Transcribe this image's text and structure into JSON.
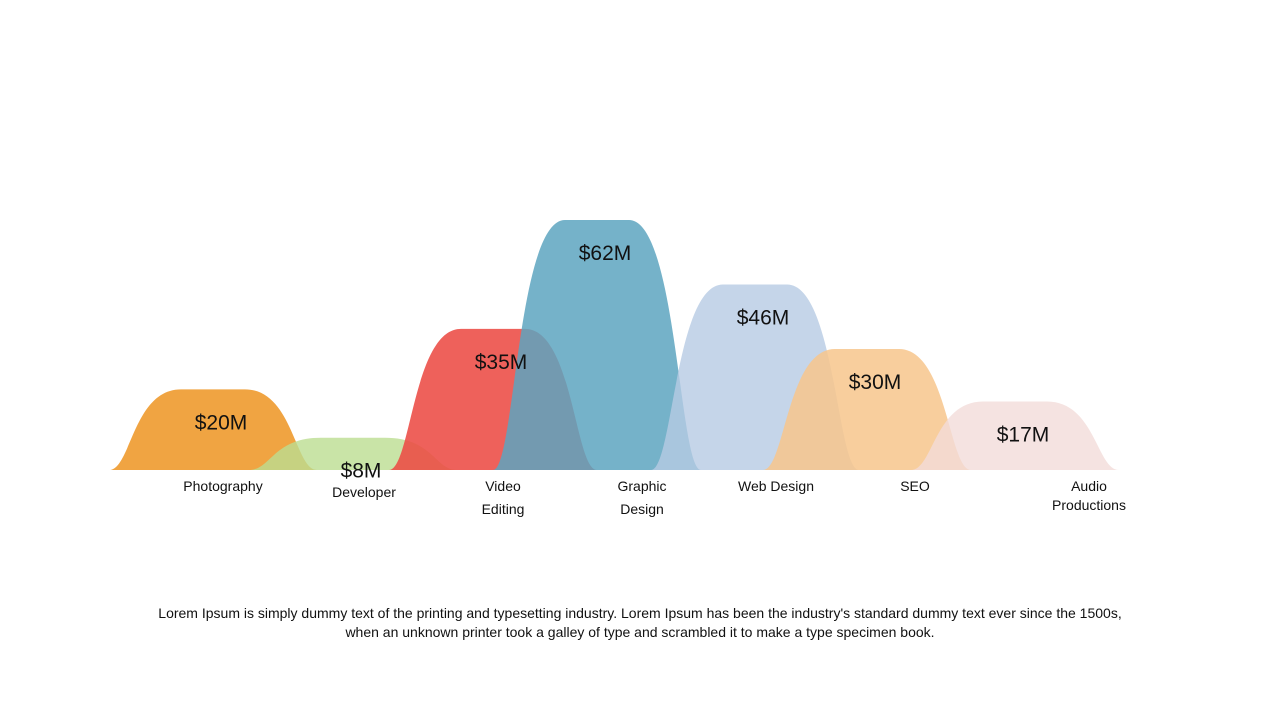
{
  "chart_data": {
    "type": "area",
    "title": "",
    "xlabel": "",
    "ylabel": "",
    "ylim": [
      0,
      62
    ],
    "categories": [
      [
        "Photography"
      ],
      [
        "Developer"
      ],
      [
        "Video",
        "Editing"
      ],
      [
        "Graphic",
        "Design"
      ],
      [
        "Web Design"
      ],
      [
        "SEO"
      ],
      [
        "Audio",
        "Productions"
      ]
    ],
    "values": [
      20,
      8,
      35,
      62,
      46,
      30,
      17
    ],
    "value_labels": [
      "$20M",
      "$8M",
      "$35M",
      "$62M",
      "$46M",
      "$30M",
      "$17M"
    ],
    "colors": [
      "#EE9A2E",
      "#BBDD91",
      "#EC4B44",
      "#5DA4BF",
      "#B6CBE4",
      "#F7C58C",
      "#F2DCDA"
    ],
    "opacity": [
      0.9,
      0.8,
      0.88,
      0.85,
      0.8,
      0.85,
      0.8
    ],
    "grid": false,
    "legend": "none"
  },
  "caption": {
    "line1": "Lorem Ipsum is simply dummy text of the printing and typesetting industry. Lorem Ipsum has been the industry's standard dummy text ever since the 1500s,",
    "line2": "when an unknown printer took a galley of type and scrambled it to make a type specimen book."
  }
}
